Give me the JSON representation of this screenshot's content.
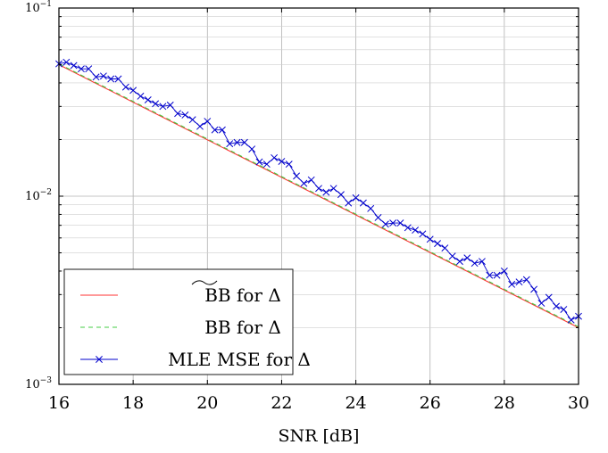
{
  "chart_data": {
    "type": "line",
    "xlabel": "SNR [dB]",
    "ylabel": "",
    "xlim": [
      16,
      30
    ],
    "ylim": [
      0.001,
      0.1
    ],
    "yscale": "log",
    "grid": true,
    "legend_position": "bottom-left",
    "x_ticks": [
      "16",
      "18",
      "20",
      "22",
      "24",
      "26",
      "28",
      "30"
    ],
    "y_ticks": [
      {
        "base": "10",
        "exp": "−1",
        "value": 0.1
      },
      {
        "base": "10",
        "exp": "−2",
        "value": 0.01
      },
      {
        "base": "10",
        "exp": "−3",
        "value": 0.001
      }
    ],
    "series": [
      {
        "name": "BB for Δ",
        "legend_hat": "widetilde",
        "color": "#ff3333",
        "style": "solid",
        "marker": "none",
        "x": [
          16,
          30
        ],
        "y": [
          0.05,
          0.002
        ]
      },
      {
        "name": "BB for Δ",
        "color": "#44cc44",
        "style": "dashed",
        "marker": "none",
        "x": [
          16,
          30
        ],
        "y": [
          0.0505,
          0.00202
        ]
      },
      {
        "name": "MLE MSE for Δ",
        "color": "#0000cc",
        "style": "solid",
        "marker": "x",
        "x": [
          16.0,
          16.2,
          16.4,
          16.6,
          16.8,
          17.0,
          17.2,
          17.4,
          17.6,
          17.8,
          18.0,
          18.2,
          18.4,
          18.6,
          18.8,
          19.0,
          19.2,
          19.4,
          19.6,
          19.8,
          20.0,
          20.2,
          20.4,
          20.6,
          20.8,
          21.0,
          21.2,
          21.4,
          21.6,
          21.8,
          22.0,
          22.2,
          22.4,
          22.6,
          22.8,
          23.0,
          23.2,
          23.4,
          23.6,
          23.8,
          24.0,
          24.2,
          24.4,
          24.6,
          24.8,
          25.0,
          25.2,
          25.4,
          25.6,
          25.8,
          26.0,
          26.2,
          26.4,
          26.6,
          26.8,
          27.0,
          27.2,
          27.4,
          27.6,
          27.8,
          28.0,
          28.2,
          28.4,
          28.6,
          28.8,
          29.0,
          29.2,
          29.4,
          29.6,
          29.8,
          30.0
        ],
        "y": [
          0.0505,
          0.0515,
          0.0495,
          0.0475,
          0.0475,
          0.043,
          0.0435,
          0.042,
          0.042,
          0.038,
          0.0365,
          0.034,
          0.0325,
          0.031,
          0.03,
          0.0305,
          0.0275,
          0.027,
          0.0255,
          0.0235,
          0.025,
          0.0225,
          0.0225,
          0.019,
          0.0193,
          0.0193,
          0.0178,
          0.0152,
          0.0148,
          0.016,
          0.0153,
          0.0148,
          0.0128,
          0.0117,
          0.0122,
          0.011,
          0.0105,
          0.011,
          0.0102,
          0.0092,
          0.0098,
          0.0092,
          0.0086,
          0.0077,
          0.0071,
          0.0072,
          0.0072,
          0.0068,
          0.0066,
          0.0063,
          0.0059,
          0.0056,
          0.0053,
          0.0048,
          0.0045,
          0.0047,
          0.0044,
          0.0045,
          0.0038,
          0.0038,
          0.004,
          0.0034,
          0.0035,
          0.0036,
          0.0032,
          0.0027,
          0.0029,
          0.0026,
          0.0025,
          0.0022,
          0.0023
        ]
      }
    ]
  }
}
